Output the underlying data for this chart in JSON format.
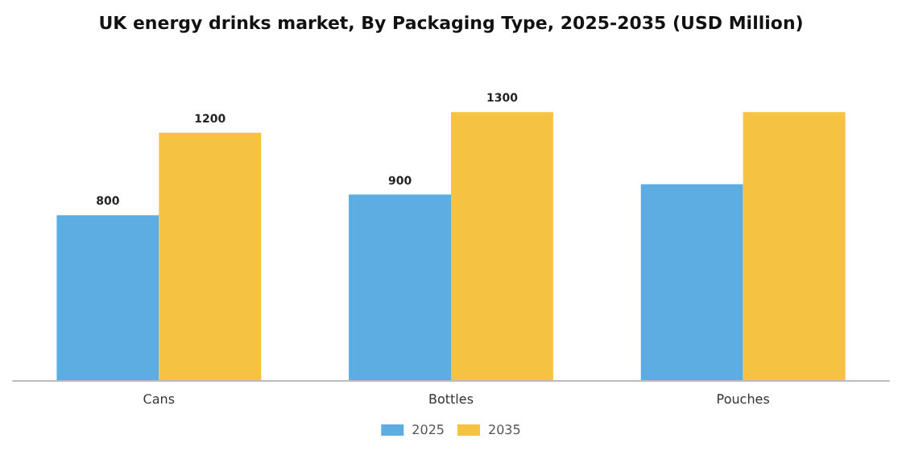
{
  "chart_data": {
    "type": "bar",
    "title": "UK energy drinks market, By Packaging Type, 2025-2035 (USD Million)",
    "categories": [
      "Cans",
      "Bottles",
      "Pouches"
    ],
    "series": [
      {
        "name": "2025",
        "color": "#5dade2",
        "values": [
          800,
          900,
          950
        ],
        "value_labels": [
          "800",
          "900",
          null
        ]
      },
      {
        "name": "2035",
        "color": "#f5c242",
        "values": [
          1200,
          1300,
          1300
        ],
        "value_labels": [
          "1200",
          "1300",
          null
        ]
      }
    ],
    "legend": "bottom"
  }
}
